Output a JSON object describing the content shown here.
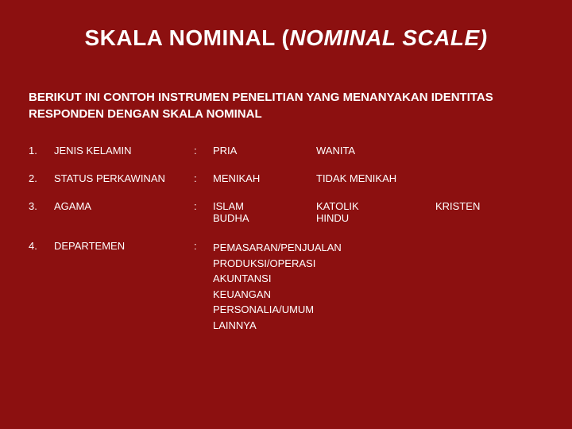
{
  "title_main": "SKALA NOMINAL (",
  "title_italic": "NOMINAL SCALE)",
  "subtitle": "BERIKUT INI CONTOH INSTRUMEN PENELITIAN YANG MENANYAKAN IDENTITAS RESPONDEN DENGAN SKALA NOMINAL",
  "items": [
    {
      "num": "1.",
      "label": "JENIS KELAMIN",
      "colon": ":",
      "rows": [
        {
          "c1": "PRIA",
          "c2": "WANITA",
          "c3": ""
        }
      ]
    },
    {
      "num": "2.",
      "label": "STATUS PERKAWINAN",
      "colon": ":",
      "rows": [
        {
          "c1": "MENIKAH",
          "c2": "TIDAK MENIKAH",
          "c3": ""
        }
      ]
    },
    {
      "num": "3.",
      "label": "AGAMA",
      "colon": ":",
      "rows": [
        {
          "c1": "ISLAM",
          "c2": "KATOLIK",
          "c3": "KRISTEN"
        },
        {
          "c1": "BUDHA",
          "c2": "HINDU",
          "c3": ""
        }
      ]
    },
    {
      "num": "4.",
      "label": "DEPARTEMEN",
      "colon": ":",
      "stack": [
        "PEMASARAN/PENJUALAN",
        "PRODUKSI/OPERASI",
        "AKUNTANSI",
        "KEUANGAN",
        "PERSONALIA/UMUM",
        "LAINNYA"
      ]
    }
  ],
  "colors": {
    "background": "#8c1010",
    "text": "#ffffff"
  }
}
